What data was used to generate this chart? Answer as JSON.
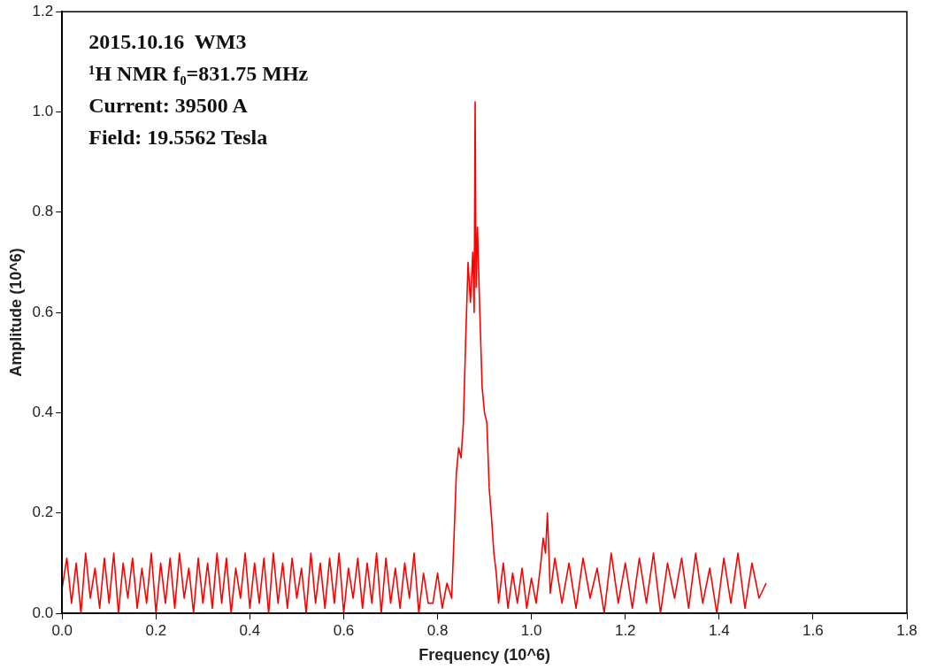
{
  "chart_data": {
    "type": "line",
    "xlabel": "Frequency (10^6)",
    "ylabel": "Amplitude (10^6)",
    "annotations": [
      "2015.10.16  WM3",
      "¹H NMR f₀=831.75 MHz",
      "Current: 39500 A",
      "Field: 19.5562 Tesla"
    ],
    "xlim": [
      0,
      1.8
    ],
    "ylim": [
      0,
      1.2
    ],
    "xticks": [
      {
        "value": 0,
        "label": "0.0"
      },
      0.2,
      0.4,
      0.6,
      0.8,
      {
        "value": 1,
        "label": "1.0"
      },
      1.2,
      1.4,
      1.6,
      1.8
    ],
    "yticks": [
      {
        "value": 0,
        "label": "0.0"
      },
      0.2,
      0.4,
      0.6,
      0.8,
      {
        "value": 1,
        "label": "1.0"
      },
      1.2
    ],
    "grid": false,
    "legend": false,
    "marker": "none",
    "line_style": "solid",
    "series": [
      {
        "color": "#ff0000",
        "x": [
          0,
          0.01,
          0.02,
          0.03,
          0.04,
          0.05,
          0.06,
          0.07,
          0.08,
          0.09,
          0.1,
          0.11,
          0.12,
          0.13,
          0.14,
          0.15,
          0.16,
          0.17,
          0.18,
          0.19,
          0.2,
          0.21,
          0.22,
          0.23,
          0.24,
          0.25,
          0.26,
          0.27,
          0.28,
          0.29,
          0.3,
          0.31,
          0.32,
          0.33,
          0.34,
          0.35,
          0.36,
          0.37,
          0.38,
          0.39,
          0.4,
          0.41,
          0.42,
          0.43,
          0.44,
          0.45,
          0.46,
          0.47,
          0.48,
          0.49,
          0.5,
          0.51,
          0.52,
          0.53,
          0.54,
          0.55,
          0.56,
          0.57,
          0.58,
          0.59,
          0.6,
          0.61,
          0.62,
          0.63,
          0.64,
          0.65,
          0.66,
          0.67,
          0.68,
          0.69,
          0.7,
          0.71,
          0.72,
          0.73,
          0.74,
          0.75,
          0.76,
          0.77,
          0.78,
          0.79,
          0.8,
          0.81,
          0.82,
          0.83,
          0.835,
          0.84,
          0.845,
          0.85,
          0.855,
          0.86,
          0.865,
          0.87,
          0.875,
          0.878,
          0.88,
          0.882,
          0.885,
          0.89,
          0.895,
          0.9,
          0.905,
          0.91,
          0.915,
          0.92,
          0.925,
          0.93,
          0.94,
          0.95,
          0.96,
          0.97,
          0.98,
          0.99,
          1,
          1.01,
          1.02,
          1.025,
          1.03,
          1.034,
          1.038,
          1.04,
          1.05,
          1.065,
          1.08,
          1.095,
          1.11,
          1.125,
          1.14,
          1.155,
          1.17,
          1.185,
          1.2,
          1.215,
          1.23,
          1.245,
          1.26,
          1.275,
          1.29,
          1.305,
          1.32,
          1.335,
          1.35,
          1.365,
          1.38,
          1.395,
          1.41,
          1.425,
          1.44,
          1.455,
          1.47,
          1.485,
          1.5
        ],
        "values": [
          0.05,
          0.11,
          0.02,
          0.1,
          0,
          0.12,
          0.03,
          0.09,
          0.01,
          0.11,
          0.02,
          0.12,
          0,
          0.1,
          0.03,
          0.11,
          0.01,
          0.09,
          0.02,
          0.12,
          0,
          0.1,
          0.02,
          0.11,
          0.01,
          0.12,
          0.03,
          0.09,
          0,
          0.11,
          0.02,
          0.1,
          0.01,
          0.12,
          0.02,
          0.11,
          0,
          0.09,
          0.03,
          0.12,
          0.01,
          0.1,
          0.02,
          0.11,
          0,
          0.12,
          0.02,
          0.1,
          0.01,
          0.11,
          0.03,
          0.09,
          0,
          0.12,
          0.02,
          0.1,
          0.01,
          0.11,
          0.02,
          0.12,
          0,
          0.09,
          0.03,
          0.11,
          0.01,
          0.1,
          0.02,
          0.12,
          0,
          0.11,
          0.02,
          0.09,
          0.01,
          0.1,
          0.03,
          0.12,
          0,
          0.08,
          0.02,
          0.02,
          0.08,
          0.01,
          0.06,
          0.03,
          0.15,
          0.28,
          0.33,
          0.31,
          0.38,
          0.55,
          0.7,
          0.62,
          0.72,
          0.6,
          1.02,
          0.65,
          0.77,
          0.6,
          0.45,
          0.4,
          0.38,
          0.25,
          0.19,
          0.12,
          0.08,
          0.02,
          0.1,
          0.01,
          0.08,
          0.02,
          0.09,
          0.01,
          0.07,
          0.02,
          0.1,
          0.15,
          0.12,
          0.2,
          0.1,
          0.04,
          0.11,
          0.02,
          0.1,
          0.01,
          0.11,
          0.03,
          0.09,
          0,
          0.12,
          0.02,
          0.1,
          0.01,
          0.11,
          0.02,
          0.12,
          0,
          0.1,
          0.03,
          0.11,
          0.01,
          0.12,
          0.02,
          0.09,
          0,
          0.11,
          0.02,
          0.12,
          0.01,
          0.1,
          0.03,
          0.06
        ]
      }
    ]
  }
}
